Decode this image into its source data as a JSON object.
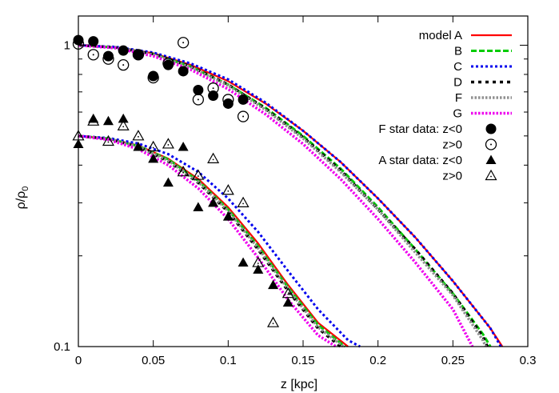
{
  "chart_data": {
    "type": "line",
    "title": "",
    "xlabel": "z [kpc]",
    "ylabel_main": "ρ/ρ",
    "ylabel_sub": "0",
    "xlim": [
      0,
      0.3
    ],
    "ylim": [
      0.1,
      1.25
    ],
    "yscale": "log",
    "grid": false,
    "legend_position": "top-right",
    "x_ticks": [
      {
        "value": 0,
        "label": "0"
      },
      {
        "value": 0.05,
        "label": "0.05"
      },
      {
        "value": 0.1,
        "label": "0.1"
      },
      {
        "value": 0.15,
        "label": "0.15"
      },
      {
        "value": 0.2,
        "label": "0.2"
      },
      {
        "value": 0.25,
        "label": "0.25"
      },
      {
        "value": 0.3,
        "label": "0.3"
      }
    ],
    "y_ticks": [
      {
        "value": 0.1,
        "label": "0.1"
      },
      {
        "value": 1,
        "label": "1"
      }
    ],
    "y_minor_ticks": [
      0.2,
      0.3,
      0.4,
      0.5,
      0.6,
      0.7,
      0.8,
      0.9
    ],
    "curve_groups": [
      {
        "group": "F stars",
        "series": [
          {
            "name": "model A",
            "color": "#ff0000",
            "dash": "solid",
            "x": [
              0,
              0.025,
              0.05,
              0.075,
              0.1,
              0.125,
              0.15,
              0.175,
              0.2,
              0.225,
              0.25,
              0.275,
              0.283
            ],
            "y": [
              1.0,
              0.985,
              0.94,
              0.86,
              0.76,
              0.64,
              0.52,
              0.41,
              0.31,
              0.23,
              0.165,
              0.115,
              0.1
            ]
          },
          {
            "name": "B",
            "color": "#00cc00",
            "dash": "dashed",
            "x": [
              0,
              0.025,
              0.05,
              0.075,
              0.1,
              0.125,
              0.15,
              0.175,
              0.2,
              0.225,
              0.25,
              0.27,
              0.275
            ],
            "y": [
              1.0,
              0.983,
              0.935,
              0.85,
              0.74,
              0.62,
              0.5,
              0.39,
              0.29,
              0.21,
              0.15,
              0.11,
              0.1
            ]
          },
          {
            "name": "C",
            "color": "#0000ee",
            "dash": "dotted",
            "x": [
              0,
              0.025,
              0.05,
              0.075,
              0.1,
              0.125,
              0.15,
              0.175,
              0.2,
              0.225,
              0.25,
              0.275,
              0.282
            ],
            "y": [
              1.0,
              0.987,
              0.945,
              0.87,
              0.77,
              0.645,
              0.52,
              0.41,
              0.31,
              0.23,
              0.165,
              0.115,
              0.1
            ]
          },
          {
            "name": "D",
            "color": "#000000",
            "dash": "dash-dot",
            "x": [
              0,
              0.025,
              0.05,
              0.075,
              0.1,
              0.125,
              0.15,
              0.175,
              0.2,
              0.225,
              0.25,
              0.27,
              0.273
            ],
            "y": [
              1.0,
              0.983,
              0.935,
              0.85,
              0.74,
              0.615,
              0.495,
              0.385,
              0.285,
              0.21,
              0.15,
              0.108,
              0.1
            ]
          },
          {
            "name": "F",
            "color": "#909090",
            "dash": "dotted-thick",
            "x": [
              0,
              0.025,
              0.05,
              0.075,
              0.1,
              0.125,
              0.15,
              0.175,
              0.2,
              0.225,
              0.25,
              0.27,
              0.272
            ],
            "y": [
              1.0,
              0.982,
              0.93,
              0.845,
              0.735,
              0.61,
              0.49,
              0.38,
              0.285,
              0.205,
              0.148,
              0.105,
              0.1
            ]
          },
          {
            "name": "G",
            "color": "#ee00ee",
            "dash": "dotted-thick",
            "x": [
              0,
              0.025,
              0.05,
              0.075,
              0.1,
              0.125,
              0.15,
              0.175,
              0.2,
              0.225,
              0.25,
              0.263
            ],
            "y": [
              1.0,
              0.978,
              0.92,
              0.83,
              0.715,
              0.59,
              0.47,
              0.36,
              0.265,
              0.19,
              0.133,
              0.1
            ]
          }
        ]
      },
      {
        "group": "A stars",
        "series": [
          {
            "name": "model A",
            "color": "#ff0000",
            "dash": "solid",
            "x": [
              0,
              0.02,
              0.04,
              0.06,
              0.08,
              0.1,
              0.12,
              0.14,
              0.16,
              0.18
            ],
            "y": [
              0.5,
              0.49,
              0.465,
              0.42,
              0.36,
              0.29,
              0.22,
              0.16,
              0.12,
              0.1
            ]
          },
          {
            "name": "B",
            "color": "#00cc00",
            "dash": "dashed",
            "x": [
              0,
              0.02,
              0.04,
              0.06,
              0.08,
              0.1,
              0.12,
              0.14,
              0.16,
              0.178
            ],
            "y": [
              0.5,
              0.49,
              0.463,
              0.418,
              0.355,
              0.285,
              0.215,
              0.157,
              0.118,
              0.1
            ]
          },
          {
            "name": "C",
            "color": "#0000ee",
            "dash": "dotted",
            "x": [
              0,
              0.02,
              0.04,
              0.06,
              0.08,
              0.1,
              0.12,
              0.14,
              0.16,
              0.18,
              0.188
            ],
            "y": [
              0.5,
              0.492,
              0.472,
              0.435,
              0.38,
              0.31,
              0.24,
              0.178,
              0.133,
              0.105,
              0.1
            ]
          },
          {
            "name": "D",
            "color": "#000000",
            "dash": "dash-dot",
            "x": [
              0,
              0.02,
              0.04,
              0.06,
              0.08,
              0.1,
              0.12,
              0.14,
              0.16,
              0.175
            ],
            "y": [
              0.5,
              0.489,
              0.46,
              0.412,
              0.35,
              0.28,
              0.21,
              0.153,
              0.115,
              0.1
            ]
          },
          {
            "name": "F",
            "color": "#909090",
            "dash": "dotted-thick",
            "x": [
              0,
              0.02,
              0.04,
              0.06,
              0.08,
              0.1,
              0.12,
              0.14,
              0.16,
              0.177
            ],
            "y": [
              0.5,
              0.489,
              0.461,
              0.414,
              0.352,
              0.282,
              0.212,
              0.155,
              0.116,
              0.1
            ]
          },
          {
            "name": "G",
            "color": "#ee00ee",
            "dash": "dotted-thick",
            "x": [
              0,
              0.02,
              0.04,
              0.06,
              0.08,
              0.1,
              0.12,
              0.14,
              0.16,
              0.172
            ],
            "y": [
              0.5,
              0.486,
              0.452,
              0.4,
              0.335,
              0.265,
              0.197,
              0.143,
              0.109,
              0.1
            ]
          }
        ]
      }
    ],
    "legend_lines": [
      {
        "label": "model A",
        "color": "#ff0000",
        "dash": "solid"
      },
      {
        "label": "B",
        "color": "#00cc00",
        "dash": "dashed"
      },
      {
        "label": "C",
        "color": "#0000ee",
        "dash": "dotted"
      },
      {
        "label": "D",
        "color": "#000000",
        "dash": "dash-dot"
      },
      {
        "label": "F",
        "color": "#909090",
        "dash": "dotted-thick"
      },
      {
        "label": "G",
        "color": "#ee00ee",
        "dash": "dotted-thick"
      }
    ],
    "point_series": [
      {
        "name": "F star data: z<0",
        "marker": "circle-filled",
        "x": [
          0,
          0.01,
          0.02,
          0.03,
          0.04,
          0.05,
          0.06,
          0.07,
          0.08,
          0.09,
          0.1,
          0.11
        ],
        "y": [
          1.04,
          1.03,
          0.92,
          0.96,
          0.93,
          0.79,
          0.86,
          0.82,
          0.71,
          0.68,
          0.64,
          0.66
        ]
      },
      {
        "name": "z>0",
        "marker": "circle-open",
        "x": [
          0,
          0.01,
          0.02,
          0.03,
          0.04,
          0.05,
          0.06,
          0.07,
          0.08,
          0.09,
          0.1,
          0.11
        ],
        "y": [
          1.01,
          0.93,
          0.9,
          0.86,
          0.93,
          0.78,
          0.87,
          1.02,
          0.66,
          0.72,
          0.66,
          0.58
        ]
      },
      {
        "name": "A star data: z<0",
        "marker": "triangle-filled",
        "x": [
          0,
          0.01,
          0.02,
          0.03,
          0.04,
          0.05,
          0.06,
          0.07,
          0.08,
          0.09,
          0.1,
          0.11,
          0.12,
          0.13,
          0.14
        ],
        "y": [
          0.47,
          0.57,
          0.56,
          0.57,
          0.46,
          0.42,
          0.35,
          0.46,
          0.29,
          0.3,
          0.27,
          0.19,
          0.18,
          0.16,
          0.14
        ]
      },
      {
        "name": "z>0",
        "marker": "triangle-open",
        "x": [
          0,
          0.01,
          0.02,
          0.03,
          0.04,
          0.05,
          0.06,
          0.07,
          0.08,
          0.09,
          0.1,
          0.11,
          0.12,
          0.13,
          0.14
        ],
        "y": [
          0.5,
          0.56,
          0.48,
          0.54,
          0.5,
          0.46,
          0.47,
          0.38,
          0.37,
          0.42,
          0.33,
          0.3,
          0.19,
          0.12,
          0.15
        ]
      }
    ]
  }
}
